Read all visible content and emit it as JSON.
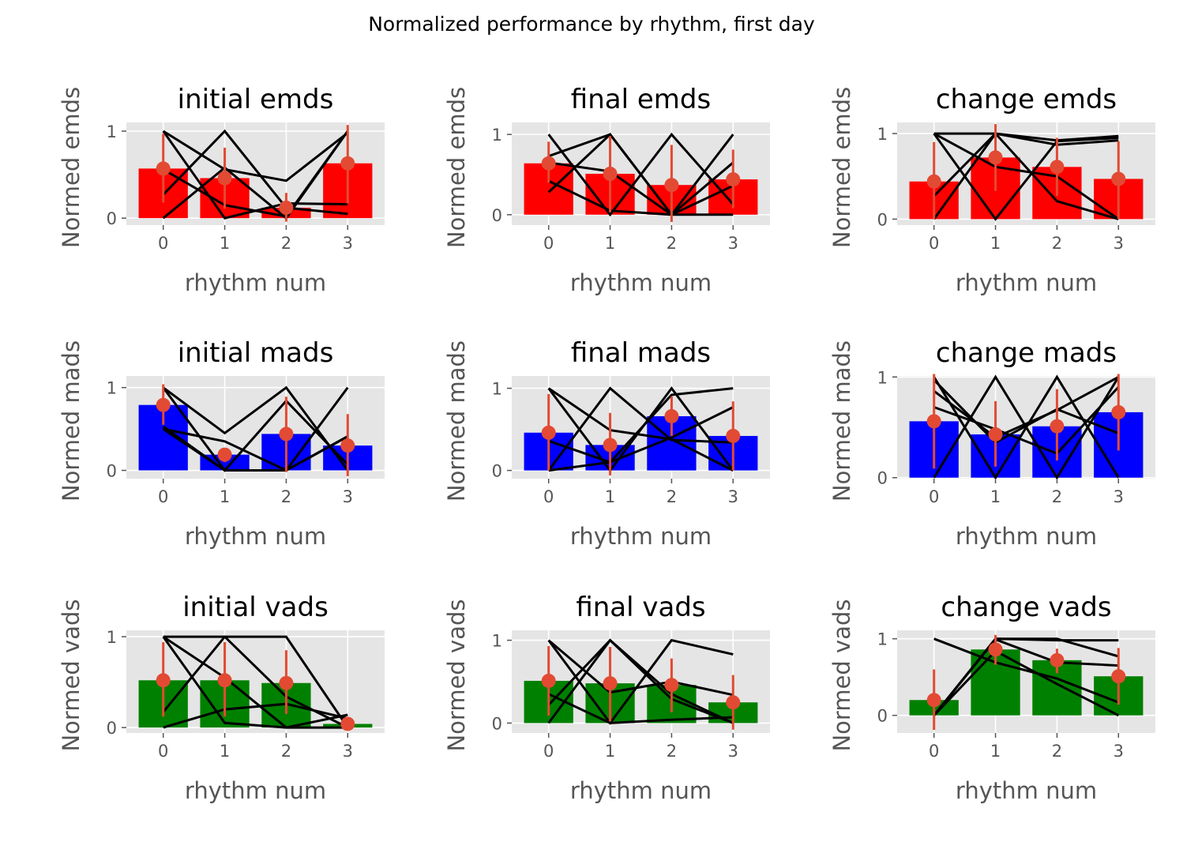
{
  "figure": {
    "suptitle": "Normalized performance by rhythm, first day"
  },
  "style": {
    "panel_bg": "#e5e5e5",
    "grid": "#ffffff",
    "tick_text": "#555555",
    "label_text": "#555555",
    "title_text": "#000000",
    "subject_line": "#000000",
    "errorbar": "#e24a33",
    "colors": {
      "emds": "#ff0000",
      "mads": "#0000ff",
      "vads": "#008000"
    }
  },
  "chart_data": [
    {
      "type": "bar",
      "title": "initial emds",
      "xlabel": "rhythm num",
      "ylabel": "Normed emds",
      "color": "emds",
      "categories": [
        0,
        1,
        2,
        3
      ],
      "xlim": [
        -0.6,
        3.6
      ],
      "ylim": [
        -0.08,
        1.1
      ],
      "yticks": [
        0,
        1
      ],
      "values": [
        0.57,
        0.46,
        0.12,
        0.63
      ],
      "err_low": [
        0.18,
        0.11,
        -0.04,
        0.17
      ],
      "err_high": [
        0.97,
        0.81,
        0.29,
        1.07
      ],
      "lines": [
        [
          1.0,
          0.56,
          0.43,
          0.98
        ],
        [
          0.56,
          0.15,
          0.02,
          1.0
        ],
        [
          0.27,
          1.0,
          0.12,
          0.05
        ],
        [
          0.0,
          0.58,
          0.0,
          1.0
        ],
        [
          1.0,
          0.0,
          0.17,
          0.16
        ]
      ]
    },
    {
      "type": "bar",
      "title": "final emds",
      "xlabel": "rhythm num",
      "ylabel": "Normed emds",
      "color": "emds",
      "categories": [
        0,
        1,
        2,
        3
      ],
      "xlim": [
        -0.6,
        3.6
      ],
      "ylim": [
        -0.13,
        1.15
      ],
      "yticks": [
        0,
        1
      ],
      "values": [
        0.64,
        0.51,
        0.37,
        0.44
      ],
      "err_low": [
        0.4,
        0.03,
        -0.09,
        0.08
      ],
      "err_high": [
        0.91,
        0.98,
        0.87,
        0.81
      ],
      "lines": [
        [
          1.0,
          0.0,
          1.0,
          0.13
        ],
        [
          0.73,
          1.0,
          0.0,
          0.65
        ],
        [
          0.42,
          0.05,
          0.0,
          1.0
        ],
        [
          0.28,
          1.0,
          0.0,
          0.0
        ],
        [
          0.65,
          0.54,
          0.0,
          0.36
        ]
      ]
    },
    {
      "type": "bar",
      "title": "change emds",
      "xlabel": "rhythm num",
      "ylabel": "Normed emds",
      "color": "emds",
      "categories": [
        0,
        1,
        2,
        3
      ],
      "xlim": [
        -0.6,
        3.6
      ],
      "ylim": [
        -0.07,
        1.13
      ],
      "yticks": [
        0,
        1
      ],
      "values": [
        0.44,
        0.72,
        0.61,
        0.47
      ],
      "err_low": [
        0.0,
        0.33,
        0.27,
        0.0
      ],
      "err_high": [
        0.9,
        1.11,
        0.95,
        0.91
      ],
      "lines": [
        [
          1.0,
          0.0,
          0.91,
          0.95
        ],
        [
          0.0,
          1.0,
          0.87,
          0.92
        ],
        [
          0.27,
          1.0,
          0.21,
          0.0
        ],
        [
          1.0,
          0.61,
          0.5,
          0.0
        ],
        [
          1.0,
          1.0,
          0.92,
          0.97
        ]
      ]
    },
    {
      "type": "bar",
      "title": "initial mads",
      "xlabel": "rhythm num",
      "ylabel": "Normed mads",
      "color": "mads",
      "categories": [
        0,
        1,
        2,
        3
      ],
      "xlim": [
        -0.6,
        3.6
      ],
      "ylim": [
        -0.1,
        1.14
      ],
      "yticks": [
        0,
        1
      ],
      "values": [
        0.79,
        0.19,
        0.44,
        0.3
      ],
      "err_low": [
        0.55,
        0.1,
        -0.02,
        -0.07
      ],
      "err_high": [
        1.04,
        0.27,
        0.89,
        0.68
      ],
      "lines": [
        [
          1.0,
          0.45,
          1.0,
          0.0
        ],
        [
          0.5,
          0.35,
          0.0,
          1.0
        ],
        [
          0.53,
          0.0,
          0.0,
          0.41
        ],
        [
          1.0,
          0.0,
          0.84,
          0.07
        ],
        [
          0.5,
          0.0,
          0.0,
          0.41
        ]
      ]
    },
    {
      "type": "bar",
      "title": "final mads",
      "xlabel": "rhythm num",
      "ylabel": "Normed mads",
      "color": "mads",
      "categories": [
        0,
        1,
        2,
        3
      ],
      "xlim": [
        -0.6,
        3.6
      ],
      "ylim": [
        -0.1,
        1.15
      ],
      "yticks": [
        0,
        1
      ],
      "values": [
        0.46,
        0.31,
        0.66,
        0.42
      ],
      "err_low": [
        0.0,
        -0.06,
        0.42,
        0.0
      ],
      "err_high": [
        0.93,
        0.7,
        0.9,
        0.84
      ],
      "lines": [
        [
          1.0,
          0.0,
          1.0,
          0.0
        ],
        [
          0.36,
          0.1,
          0.92,
          1.0
        ],
        [
          0.0,
          0.1,
          0.4,
          0.77
        ],
        [
          0.0,
          1.0,
          0.37,
          0.34
        ],
        [
          1.0,
          0.49,
          0.38,
          0.0
        ]
      ]
    },
    {
      "type": "bar",
      "title": "change mads",
      "xlabel": "rhythm num",
      "ylabel": "Normed mads",
      "color": "mads",
      "categories": [
        0,
        1,
        2,
        3
      ],
      "xlim": [
        -0.6,
        3.6
      ],
      "ylim": [
        -0.01,
        1.01
      ],
      "yticks": [
        0,
        1
      ],
      "values": [
        0.56,
        0.43,
        0.51,
        0.65
      ],
      "err_low": [
        0.09,
        0.11,
        0.17,
        0.27
      ],
      "err_high": [
        1.03,
        0.76,
        0.88,
        1.03
      ],
      "lines": [
        [
          1.0,
          0.0,
          1.0,
          0.0
        ],
        [
          0.0,
          1.0,
          0.0,
          1.0
        ],
        [
          0.86,
          0.4,
          0.67,
          1.0
        ],
        [
          0.7,
          0.48,
          0.24,
          0.9
        ],
        [
          0.97,
          0.35,
          0.68,
          0.44
        ]
      ]
    },
    {
      "type": "bar",
      "title": "initial vads",
      "xlabel": "rhythm num",
      "ylabel": "Normed vads",
      "color": "vads",
      "categories": [
        0,
        1,
        2,
        3
      ],
      "xlim": [
        -0.6,
        3.6
      ],
      "ylim": [
        -0.06,
        1.07
      ],
      "yticks": [
        0,
        1
      ],
      "values": [
        0.52,
        0.52,
        0.49,
        0.04
      ],
      "err_low": [
        0.12,
        0.12,
        0.15,
        0.0
      ],
      "err_high": [
        0.94,
        0.94,
        0.85,
        0.08
      ],
      "lines": [
        [
          1.0,
          0.05,
          0.0,
          0.14
        ],
        [
          0.17,
          1.0,
          1.0,
          0.0
        ],
        [
          0.0,
          0.2,
          0.26,
          0.1
        ],
        [
          1.0,
          0.55,
          0.0,
          0.0
        ],
        [
          1.0,
          1.0,
          0.34,
          0.0
        ]
      ]
    },
    {
      "type": "bar",
      "title": "final vads",
      "xlabel": "rhythm num",
      "ylabel": "Normed vads",
      "color": "vads",
      "categories": [
        0,
        1,
        2,
        3
      ],
      "xlim": [
        -0.6,
        3.6
      ],
      "ylim": [
        -0.12,
        1.12
      ],
      "yticks": [
        0,
        1
      ],
      "values": [
        0.51,
        0.48,
        0.46,
        0.25
      ],
      "err_low": [
        0.09,
        0.02,
        0.13,
        -0.08
      ],
      "err_high": [
        0.93,
        0.92,
        0.78,
        0.58
      ],
      "lines": [
        [
          1.0,
          0.0,
          1.0,
          0.83
        ],
        [
          0.35,
          0.0,
          0.04,
          0.07
        ],
        [
          0.0,
          1.0,
          0.29,
          0.0
        ],
        [
          0.22,
          1.0,
          0.35,
          0.0
        ],
        [
          1.0,
          0.37,
          0.5,
          0.34
        ]
      ]
    },
    {
      "type": "bar",
      "title": "change vads",
      "xlabel": "rhythm num",
      "ylabel": "Normed vads",
      "color": "vads",
      "categories": [
        0,
        1,
        2,
        3
      ],
      "xlim": [
        -0.6,
        3.6
      ],
      "ylim": [
        -0.23,
        1.11
      ],
      "yticks": [
        0,
        1
      ],
      "values": [
        0.2,
        0.86,
        0.72,
        0.51
      ],
      "err_low": [
        -0.19,
        0.66,
        0.55,
        0.14
      ],
      "err_high": [
        0.6,
        1.05,
        0.87,
        0.88
      ],
      "lines": [
        [
          1.0,
          0.69,
          0.48,
          0.17
        ],
        [
          0.0,
          1.0,
          0.98,
          0.98
        ],
        [
          0.0,
          1.0,
          1.0,
          0.77
        ],
        [
          0.0,
          0.99,
          0.69,
          0.65
        ],
        [
          0.0,
          0.84,
          0.41,
          0.0
        ]
      ]
    }
  ]
}
